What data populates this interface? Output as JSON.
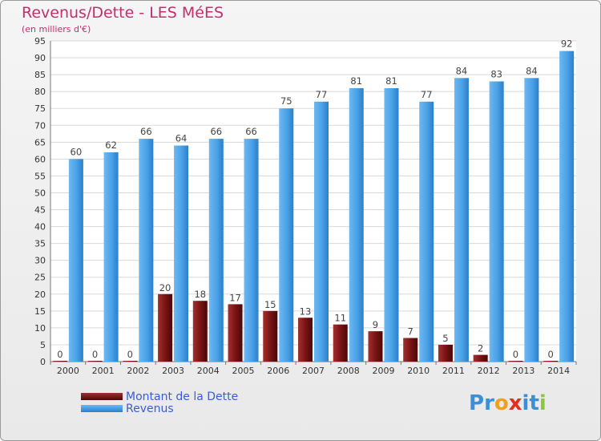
{
  "chart_data": {
    "type": "bar",
    "title": "Revenus/Dette - LES MéES",
    "subtitle": "(en milliers d'€)",
    "categories": [
      "2000",
      "2001",
      "2002",
      "2003",
      "2004",
      "2005",
      "2006",
      "2007",
      "2008",
      "2009",
      "2010",
      "2011",
      "2012",
      "2013",
      "2014"
    ],
    "series": [
      {
        "name": "Montant de la Dette",
        "color": "#6b1010",
        "values": [
          0,
          0,
          0,
          20,
          18,
          17,
          15,
          13,
          11,
          9,
          7,
          5,
          2,
          0,
          0
        ]
      },
      {
        "name": "Revenus",
        "color": "#4aa1e6",
        "values": [
          60,
          62,
          66,
          64,
          66,
          66,
          75,
          77,
          81,
          81,
          77,
          84,
          83,
          84,
          92
        ]
      }
    ],
    "ylim": [
      0,
      95
    ],
    "yticks": [
      0,
      5,
      10,
      15,
      20,
      25,
      30,
      35,
      40,
      45,
      50,
      55,
      60,
      65,
      70,
      75,
      80,
      85,
      90,
      95
    ],
    "grid": true,
    "legend_position": "bottom-left"
  },
  "logo": {
    "text": "Proxiti",
    "letters": [
      "P",
      "r",
      "o",
      "x",
      "i",
      "t",
      "i"
    ],
    "colors": [
      "#3a8fd6",
      "#3a8fd6",
      "#f0a020",
      "#e03020",
      "#3a8fd6",
      "#3a8fd6",
      "#8cc63f"
    ]
  }
}
